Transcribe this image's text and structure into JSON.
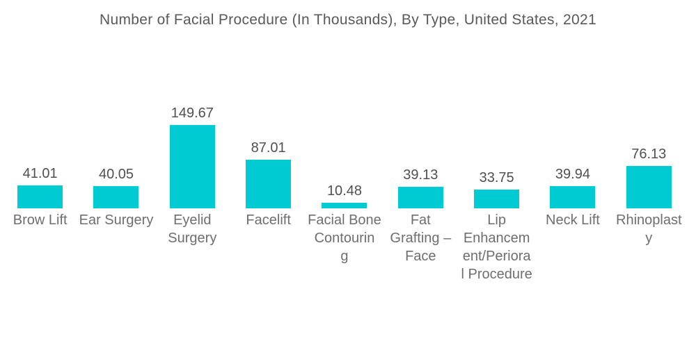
{
  "title": "Number of Facial Procedure (In Thousands), By Type, United States, 2021",
  "colors": {
    "background": "#ffffff",
    "bar": "#00cbd2",
    "title_text": "#58595b",
    "value_text": "#4f5052",
    "category_text": "#6d6e70"
  },
  "chart_data": {
    "type": "bar",
    "title": "Number of Facial Procedure (In Thousands), By Type, United States, 2021",
    "categories": [
      "Brow Lift",
      "Ear Surgery",
      "Eyelid Surgery",
      "Facelift",
      "Facial Bone Contouring",
      "Fat Grafting – Face",
      "Lip Enhancement/Perioral Procedure",
      "Neck Lift",
      "Rhinoplasty"
    ],
    "category_wrapped_lines": [
      [
        "Brow Lift"
      ],
      [
        "Ear Surgery"
      ],
      [
        "Eyelid",
        "Surgery"
      ],
      [
        "Facelift"
      ],
      [
        "Facial Bone",
        "Contourin",
        "g"
      ],
      [
        "Fat",
        "Grafting –",
        "Face"
      ],
      [
        "Lip",
        "Enhancem",
        "ent/Periora",
        "l Procedure"
      ],
      [
        "Neck Lift"
      ],
      [
        "Rhinoplast",
        "y"
      ]
    ],
    "values": [
      41.01,
      40.05,
      149.67,
      87.01,
      10.48,
      39.13,
      33.75,
      39.94,
      76.13
    ],
    "value_labels": [
      "41.01",
      "40.05",
      "149.67",
      "87.01",
      "10.48",
      "39.13",
      "33.75",
      "39.94",
      "76.13"
    ],
    "xlabel": "",
    "ylabel": "",
    "ylim": [
      0,
      150
    ],
    "grid": false,
    "legend": false,
    "axes_visible": false
  }
}
